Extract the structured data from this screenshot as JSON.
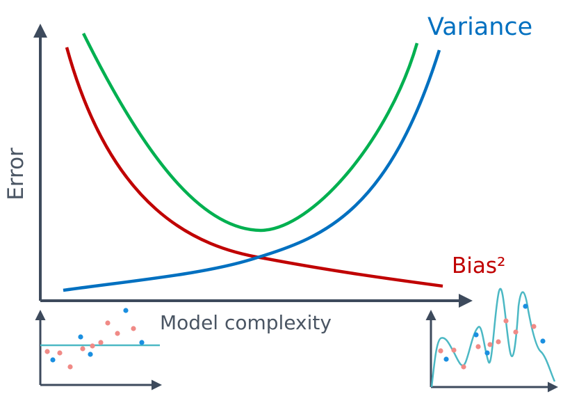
{
  "labels": {
    "y_axis": "Error",
    "x_axis": "Model complexity",
    "variance": "Variance",
    "bias": "Bias²"
  },
  "colors": {
    "axis": "#3d4a5c",
    "bias": "#c00000",
    "variance": "#0070c0",
    "total": "#00b050",
    "fit_line": "#4bb8c4",
    "dot_blue": "#1a8fe0",
    "dot_pink": "#f08a86",
    "label_text": "#4a5563"
  },
  "curves": {
    "bias": "decreasing",
    "variance": "increasing",
    "total": "u-shaped"
  },
  "insets": {
    "left": {
      "fit": "underfit-flat-line"
    },
    "right": {
      "fit": "overfit-wiggly-curve"
    }
  }
}
